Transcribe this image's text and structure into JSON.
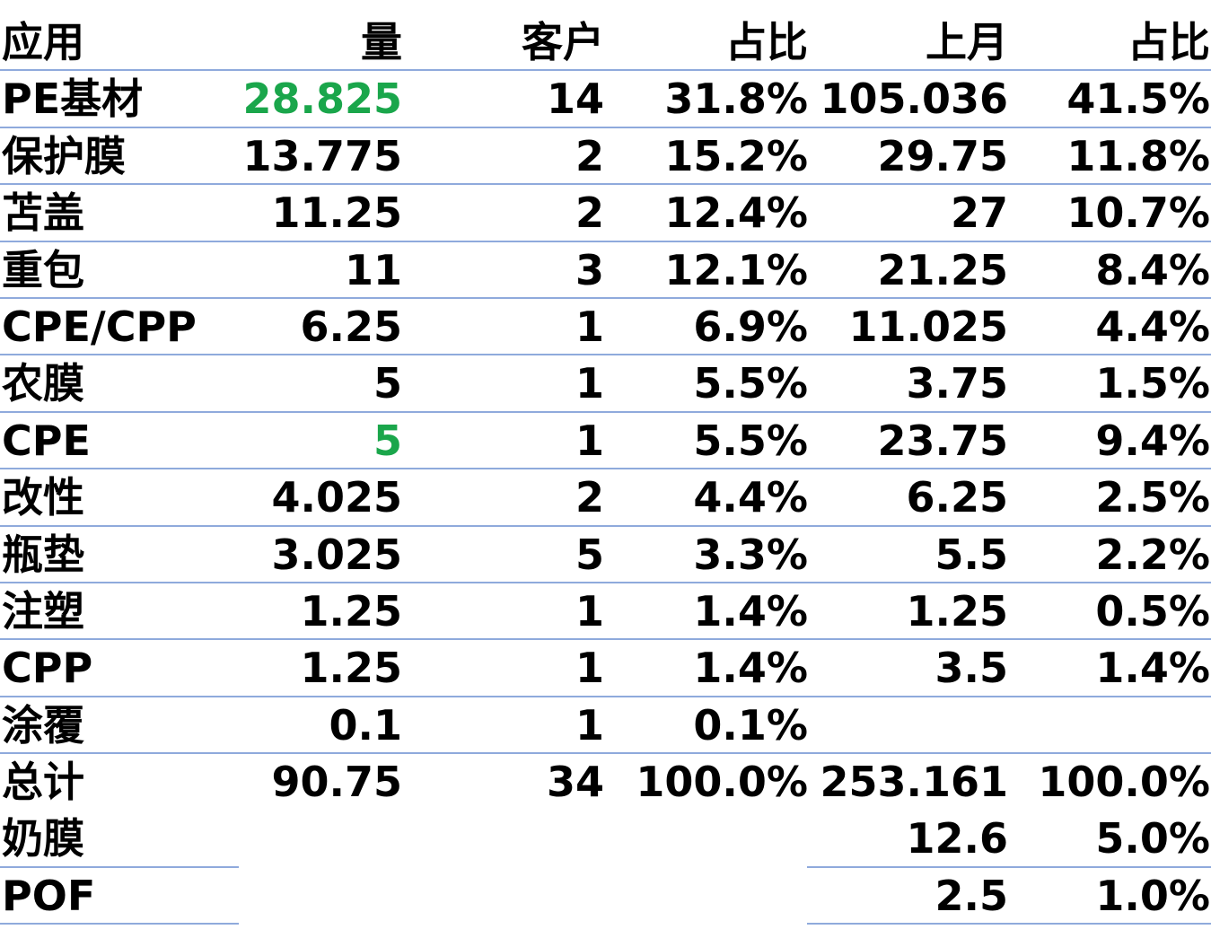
{
  "header": [
    "应用",
    "量",
    "客户",
    "占比",
    "上月",
    "占比"
  ],
  "rows": [
    [
      "PE基材",
      "28.825",
      "14",
      "31.8%",
      "105.036",
      "41.5%"
    ],
    [
      "保护膜",
      "13.775",
      "2",
      "15.2%",
      "29.75",
      "11.8%"
    ],
    [
      "苫盖",
      "11.25",
      "2",
      "12.4%",
      "27",
      "10.7%"
    ],
    [
      "重包",
      "11",
      "3",
      "12.1%",
      "21.25",
      "8.4%"
    ],
    [
      "CPE/CPP",
      "6.25",
      "1",
      "6.9%",
      "11.025",
      "4.4%"
    ],
    [
      "农膜",
      "5",
      "1",
      "5.5%",
      "3.75",
      "1.5%"
    ],
    [
      "CPE",
      "5",
      "1",
      "5.5%",
      "23.75",
      "9.4%"
    ],
    [
      "改性",
      "4.025",
      "2",
      "4.4%",
      "6.25",
      "2.5%"
    ],
    [
      "瓶垫",
      "3.025",
      "5",
      "3.3%",
      "5.5",
      "2.2%"
    ],
    [
      "注塑",
      "1.25",
      "1",
      "1.4%",
      "1.25",
      "0.5%"
    ],
    [
      "CPP",
      "1.25",
      "1",
      "1.4%",
      "3.5",
      "1.4%"
    ],
    [
      "涂覆",
      "0.1",
      "1",
      "0.1%",
      "",
      ""
    ],
    [
      "总计",
      "90.75",
      "34",
      "100.0%",
      "253.161",
      "100.0%"
    ],
    [
      "奶膜",
      "",
      "",
      "",
      "12.6",
      "5.0%"
    ],
    [
      "POF",
      "",
      "",
      "",
      "2.5",
      "1.0%"
    ]
  ],
  "colors": {
    "text": "#000000",
    "highlight_green": "#1aa64b",
    "rule_line": "#8faadc"
  },
  "highlighted_cells": [
    {
      "row": 0,
      "col": 1
    },
    {
      "row": 6,
      "col": 1
    }
  ]
}
